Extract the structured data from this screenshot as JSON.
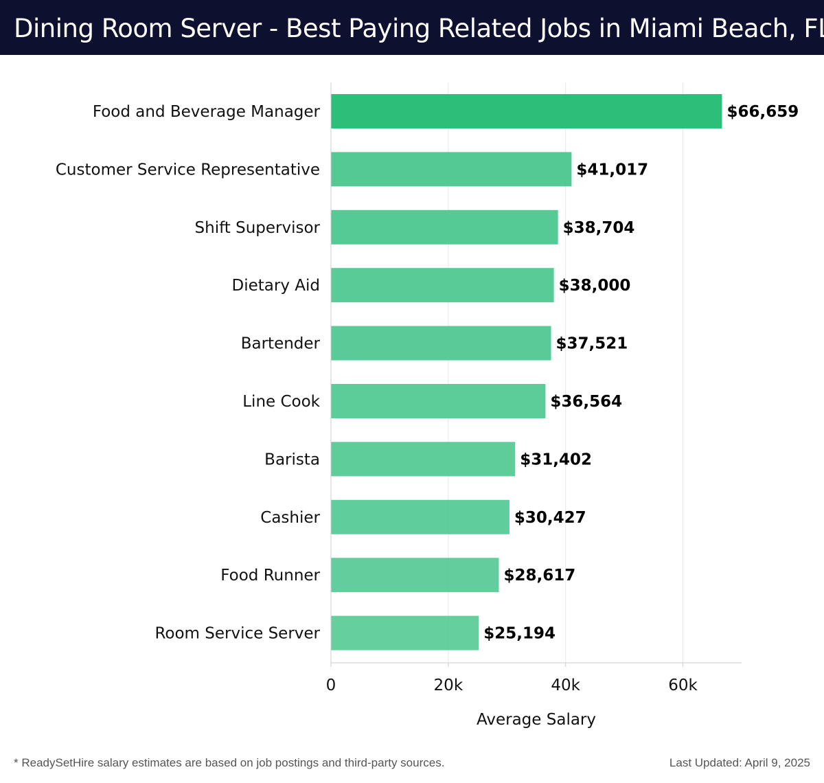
{
  "header": {
    "title": "Dining Room Server - Best Paying Related Jobs in Miami Beach, FL"
  },
  "chart_data": {
    "type": "bar",
    "orientation": "horizontal",
    "categories": [
      "Food and Beverage Manager",
      "Customer Service Representative",
      "Shift Supervisor",
      "Dietary Aid",
      "Bartender",
      "Line Cook",
      "Barista",
      "Cashier",
      "Food Runner",
      "Room Service Server"
    ],
    "values": [
      66659,
      41017,
      38704,
      38000,
      37521,
      36564,
      31402,
      30427,
      28617,
      25194
    ],
    "value_labels": [
      "$66,659",
      "$41,017",
      "$38,704",
      "$38,000",
      "$37,521",
      "$36,564",
      "$31,402",
      "$30,427",
      "$28,617",
      "$25,194"
    ],
    "xlabel": "Average Salary",
    "ylabel": "",
    "xlim": [
      0,
      70000
    ],
    "xticks": [
      0,
      20000,
      40000,
      60000
    ],
    "xtick_labels": [
      "0",
      "20k",
      "40k",
      "60k"
    ],
    "grid": true,
    "colors": {
      "top_bar": "#2bbf7a",
      "bars": "#4cc78f",
      "grid": "#e6e6e6",
      "axis": "#cccccc",
      "title_bg": "#0e1030"
    }
  },
  "footer": {
    "note": "* ReadySetHire salary estimates are based on job postings and third-party sources.",
    "updated": "Last Updated: April 9, 2025"
  }
}
